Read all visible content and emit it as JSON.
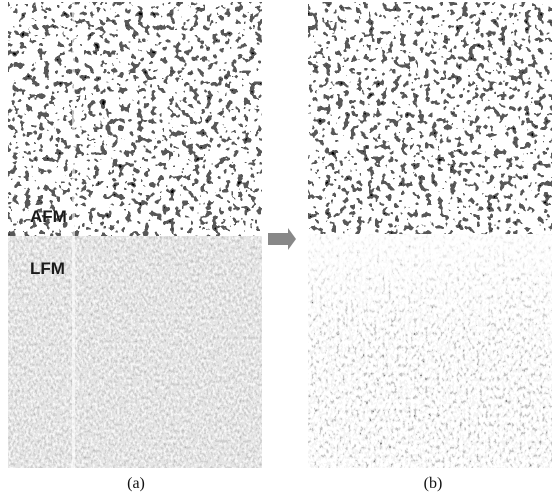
{
  "panels": [
    {
      "label": "(a)",
      "regions": [
        "AFM",
        "LFM"
      ]
    },
    {
      "label": "(b)"
    }
  ]
}
